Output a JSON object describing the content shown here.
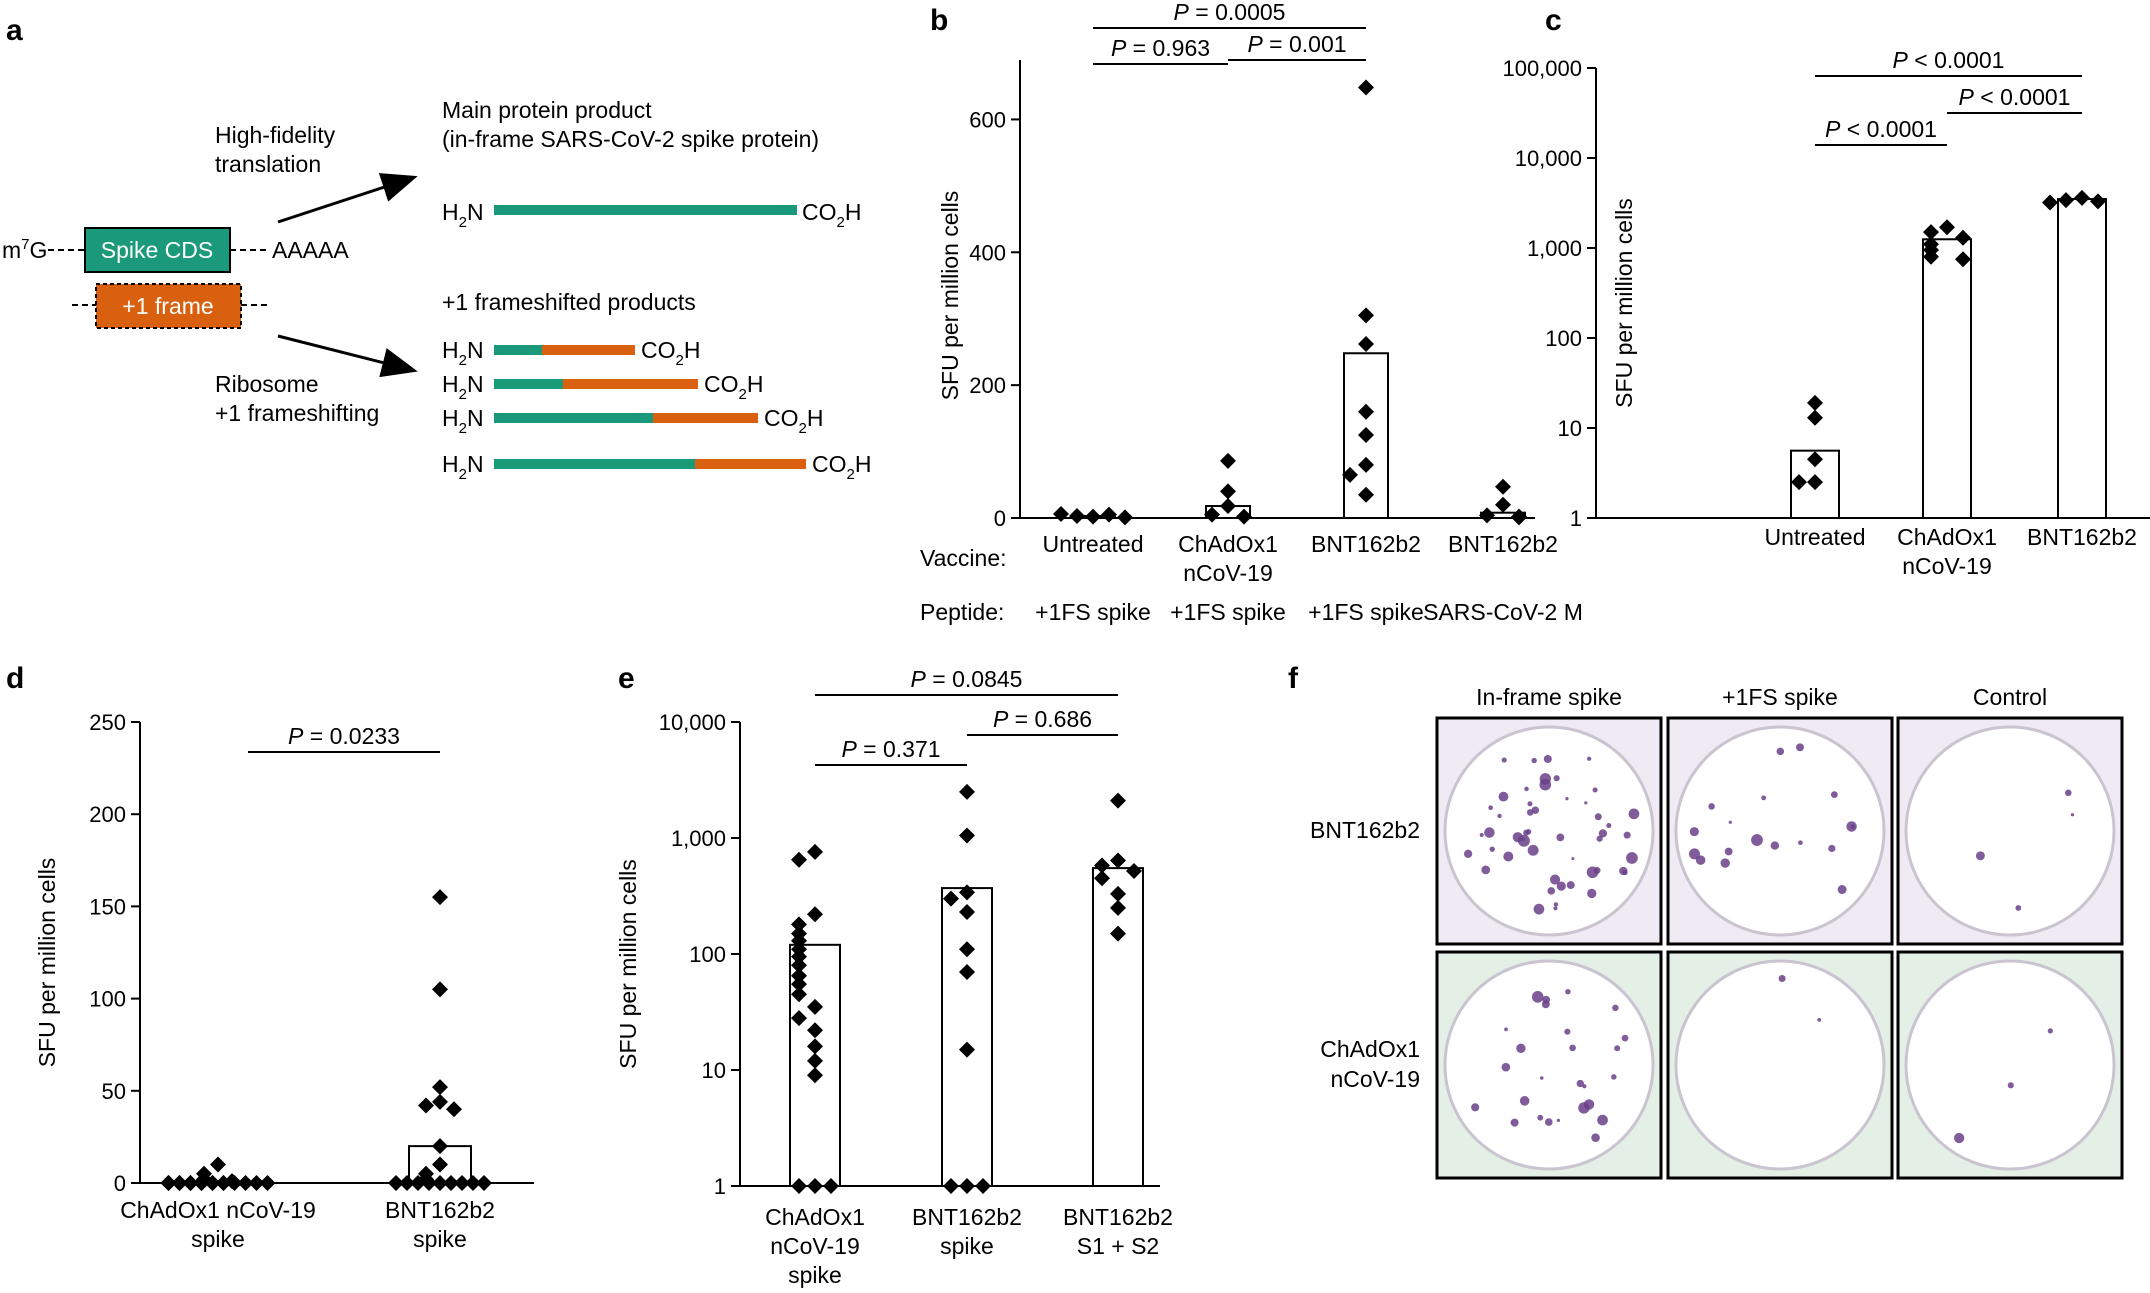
{
  "colors": {
    "spike_green": "#1a9a7a",
    "frame_orange": "#d9600f",
    "stain_purple": "#6a3f88",
    "plate_bg_top": "#efeaf4",
    "plate_bg_bottom": "#e4efe6"
  },
  "panel_a": {
    "label": "a",
    "cap": "m",
    "cap_sup": "7",
    "cap_g": "G",
    "spike_cds": "Spike CDS",
    "poly_a": "AAAAA",
    "plus1_frame": "+1 frame",
    "high_fidelity_1": "High-fidelity",
    "high_fidelity_2": "translation",
    "ribosome_1": "Ribosome",
    "ribosome_2": "+1 frameshifting",
    "main_product_1": "Main protein product",
    "main_product_2": "(in-frame SARS-CoV-2 spike protein)",
    "frameshift_products": "+1 frameshifted products",
    "n_term": "H",
    "n_term_sub": "2",
    "n_term_n": "N",
    "c_term": "CO",
    "c_term_sub": "2",
    "c_term_h": "H",
    "fragments": [
      {
        "green": 0.16,
        "orange": 0.31
      },
      {
        "green": 0.23,
        "orange": 0.45
      },
      {
        "green": 0.53,
        "orange": 0.35
      },
      {
        "green": 0.67,
        "orange": 0.37
      }
    ]
  },
  "chart_data": [
    {
      "panel": "b",
      "type": "bar",
      "ylabel": "SFU per million cells",
      "ylim": [
        0,
        700
      ],
      "yticks": [
        "0",
        "200",
        "400",
        "600"
      ],
      "row_vaccine_label": "Vaccine:",
      "row_peptide_label": "Peptide:",
      "categories": [
        {
          "vaccine": [
            "Untreated"
          ],
          "peptide": "+1FS spike",
          "bar": 3,
          "points": [
            2,
            3,
            5,
            6,
            1
          ]
        },
        {
          "vaccine": [
            "ChAdOx1",
            "nCoV-19"
          ],
          "peptide": "+1FS spike",
          "bar": 18,
          "points": [
            86,
            40,
            18,
            5,
            2
          ]
        },
        {
          "vaccine": [
            "BNT162b2"
          ],
          "peptide": "+1FS spike",
          "bar": 248,
          "points": [
            648,
            305,
            262,
            160,
            125,
            80,
            65,
            35
          ]
        },
        {
          "vaccine": [
            "BNT162b2"
          ],
          "peptide": "SARS-CoV-2 M",
          "bar": 8,
          "points": [
            47,
            20,
            4,
            2,
            1
          ]
        }
      ],
      "pvalues": [
        {
          "text": "P = 0.0005",
          "from": 0,
          "to": 2
        },
        {
          "text": "P = 0.963",
          "from": 0,
          "to": 1
        },
        {
          "text": "P = 0.001",
          "from": 1,
          "to": 2
        }
      ]
    },
    {
      "panel": "c",
      "type": "bar",
      "scale": "log",
      "ylabel": "SFU per million cells",
      "ylim": [
        1,
        100000
      ],
      "yticks": [
        "1",
        "10",
        "100",
        "1,000",
        "10,000",
        "100,000"
      ],
      "categories": [
        {
          "label": [
            "Untreated"
          ],
          "bar": 5.6,
          "points": [
            19,
            13,
            4.5,
            2.5,
            2.5
          ]
        },
        {
          "label": [
            "ChAdOx1",
            "nCoV-19"
          ],
          "bar": 1250,
          "points": [
            1700,
            1500,
            1300,
            1100,
            950,
            800,
            750
          ]
        },
        {
          "label": [
            "BNT162b2"
          ],
          "bar": 3500,
          "points": [
            3600,
            3400,
            3300,
            3200
          ]
        }
      ],
      "pvalues": [
        {
          "text": "P < 0.0001",
          "from": 0,
          "to": 2
        },
        {
          "text": "P < 0.0001",
          "from": 1,
          "to": 2
        },
        {
          "text": "P < 0.0001",
          "from": 0,
          "to": 1
        }
      ]
    },
    {
      "panel": "d",
      "type": "bar",
      "ylabel": "SFU per million cells",
      "ylim": [
        0,
        250
      ],
      "yticks": [
        "0",
        "50",
        "100",
        "150",
        "200",
        "250"
      ],
      "categories": [
        {
          "label": [
            "ChAdOx1 nCoV-19",
            "spike"
          ],
          "bar": 0.5,
          "points": [
            10,
            5,
            2,
            1,
            0,
            0,
            0,
            0,
            0,
            0,
            0,
            0,
            0,
            0,
            0,
            0,
            0,
            0,
            0,
            0
          ]
        },
        {
          "label": [
            "BNT162b2",
            "spike"
          ],
          "bar": 20,
          "points": [
            155,
            105,
            52,
            44,
            42,
            40,
            20,
            10,
            5,
            2,
            0,
            0,
            0,
            0,
            0,
            0,
            0,
            0,
            0
          ]
        }
      ],
      "pvalues": [
        {
          "text": "P = 0.0233",
          "from": 0,
          "to": 1
        }
      ]
    },
    {
      "panel": "e",
      "type": "bar",
      "scale": "log",
      "ylabel": "SFU per million cells",
      "ylim": [
        1,
        10000
      ],
      "yticks": [
        "1",
        "10",
        "100",
        "1,000",
        "10,000"
      ],
      "categories": [
        {
          "label": [
            "ChAdOx1",
            "nCoV-19",
            "spike"
          ],
          "bar": 120,
          "points": [
            760,
            650,
            220,
            180,
            150,
            130,
            110,
            95,
            80,
            65,
            55,
            45,
            35,
            28,
            22,
            16,
            12,
            9,
            1,
            1,
            1
          ]
        },
        {
          "label": [
            "BNT162b2",
            "spike"
          ],
          "bar": 370,
          "points": [
            2500,
            1050,
            340,
            300,
            230,
            110,
            70,
            15,
            1,
            1,
            1
          ]
        },
        {
          "label": [
            "BNT162b2",
            "S1 + S2"
          ],
          "bar": 550,
          "points": [
            2100,
            640,
            580,
            520,
            450,
            330,
            250,
            150
          ]
        }
      ],
      "pvalues": [
        {
          "text": "P = 0.0845",
          "from": 0,
          "to": 2
        },
        {
          "text": "P = 0.686",
          "from": 1,
          "to": 2
        },
        {
          "text": "P = 0.371",
          "from": 0,
          "to": 1
        }
      ]
    }
  ],
  "panel_f": {
    "label": "f",
    "columns": [
      "In-frame spike",
      "+1FS spike",
      "Control"
    ],
    "rows": [
      {
        "label": [
          "BNT162b2"
        ],
        "spots": [
          50,
          18,
          4
        ]
      },
      {
        "label": [
          "ChAdOx1",
          "nCoV-19"
        ],
        "spots": [
          26,
          2,
          3
        ]
      }
    ]
  },
  "panel_labels": {
    "b": "b",
    "c": "c",
    "d": "d",
    "e": "e"
  }
}
